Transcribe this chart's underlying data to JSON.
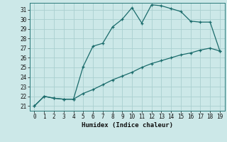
{
  "xlabel": "Humidex (Indice chaleur)",
  "ylabel": "",
  "bg_color": "#cce8e8",
  "grid_color": "#aad0d0",
  "line_color": "#1a6b6b",
  "xlim": [
    -0.5,
    19.5
  ],
  "ylim": [
    20.5,
    31.7
  ],
  "xticks": [
    0,
    1,
    2,
    3,
    4,
    5,
    6,
    7,
    8,
    9,
    10,
    11,
    12,
    13,
    14,
    15,
    16,
    17,
    18,
    19
  ],
  "yticks": [
    21,
    22,
    23,
    24,
    25,
    26,
    27,
    28,
    29,
    30,
    31
  ],
  "line1_x": [
    0,
    1,
    2,
    3,
    4,
    5,
    6,
    7,
    8,
    9,
    10,
    11,
    12,
    13,
    14,
    15,
    16,
    17,
    18,
    19
  ],
  "line1_y": [
    21.0,
    22.0,
    21.8,
    21.7,
    21.7,
    25.1,
    27.2,
    27.5,
    29.2,
    30.0,
    31.2,
    29.6,
    31.5,
    31.4,
    31.1,
    30.8,
    29.8,
    29.7,
    29.7,
    26.7
  ],
  "line2_x": [
    0,
    1,
    2,
    3,
    4,
    5,
    6,
    7,
    8,
    9,
    10,
    11,
    12,
    13,
    14,
    15,
    16,
    17,
    18,
    19
  ],
  "line2_y": [
    21.0,
    22.0,
    21.8,
    21.7,
    21.7,
    22.3,
    22.7,
    23.2,
    23.7,
    24.1,
    24.5,
    25.0,
    25.4,
    25.7,
    26.0,
    26.3,
    26.5,
    26.8,
    27.0,
    26.7
  ]
}
